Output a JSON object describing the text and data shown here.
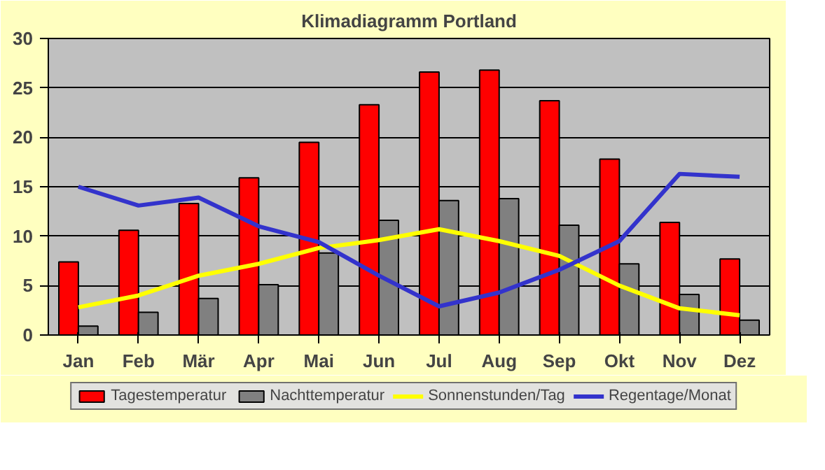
{
  "chart_data": {
    "type": "bar",
    "title": "Klimadiagramm Portland",
    "categories": [
      "Jan",
      "Feb",
      "Mär",
      "Apr",
      "Mai",
      "Jun",
      "Jul",
      "Aug",
      "Sep",
      "Okt",
      "Nov",
      "Dez"
    ],
    "series": [
      {
        "name": "Tagestemperatur",
        "color": "#ff0000",
        "values": [
          7.4,
          10.6,
          13.3,
          15.9,
          19.5,
          23.3,
          26.6,
          26.8,
          23.7,
          17.8,
          11.4,
          7.7
        ]
      },
      {
        "name": "Nachttemperatur",
        "color": "#808080",
        "values": [
          0.9,
          2.3,
          3.7,
          5.1,
          8.3,
          11.6,
          13.6,
          13.8,
          11.1,
          7.2,
          4.1,
          1.5
        ]
      },
      {
        "name": "Sonnenstunden/Tag",
        "type": "line",
        "color": "#ffff00",
        "values": [
          2.8,
          4.0,
          6.0,
          7.2,
          8.8,
          9.6,
          10.7,
          9.5,
          8.0,
          5.0,
          2.7,
          2.0
        ]
      },
      {
        "name": "Regentage/Monat",
        "type": "line",
        "color": "#3333cc",
        "values": [
          15.0,
          13.1,
          13.9,
          11.0,
          9.4,
          6.0,
          2.9,
          4.3,
          6.6,
          9.5,
          16.3,
          16.0
        ]
      }
    ],
    "ylim": [
      0,
      30
    ],
    "yticks": [
      0,
      5,
      10,
      15,
      20,
      25,
      30
    ],
    "grid": "y",
    "legend": "bottom"
  }
}
